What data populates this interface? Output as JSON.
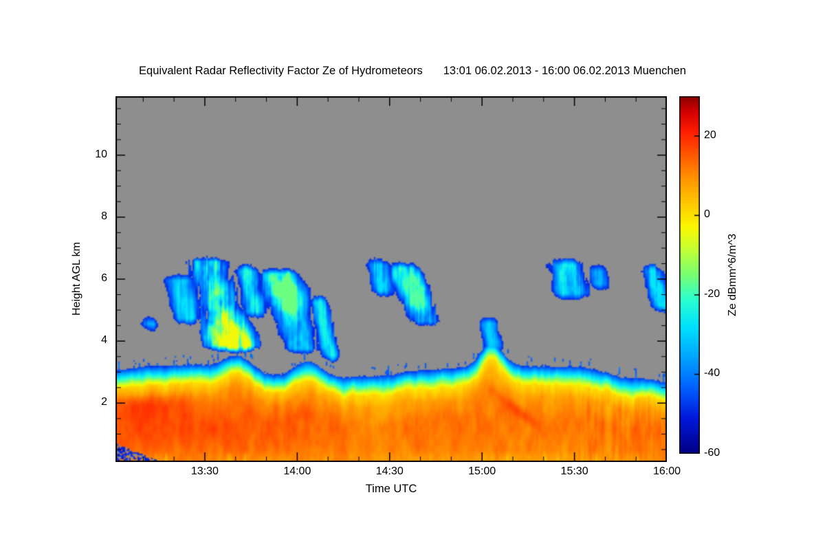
{
  "chart_data": {
    "type": "heatmap",
    "title": "Equivalent Radar Reflectivity Factor Ze of Hydrometeors",
    "period": "13:01 06.02.2013 - 16:00 06.02.2013 Muenchen",
    "xlabel": "Time UTC",
    "ylabel": "Height AGL km",
    "x_axis_range_minutes": [
      0,
      179
    ],
    "x_ticks": [
      {
        "minutes": 29,
        "label": "13:30"
      },
      {
        "minutes": 59,
        "label": "14:00"
      },
      {
        "minutes": 89,
        "label": "14:30"
      },
      {
        "minutes": 119,
        "label": "15:00"
      },
      {
        "minutes": 149,
        "label": "15:30"
      },
      {
        "minutes": 179,
        "label": "16:00"
      }
    ],
    "x_minor_tick_min": 10,
    "y_axis_range_km": [
      0.1,
      11.9
    ],
    "y_ticks": [
      2,
      4,
      6,
      8,
      10
    ],
    "y_minor_tick_km": 0.5,
    "grid": false,
    "nodata_color": "#8e8e8e",
    "colorbar": {
      "label": "Ze dBmm^6/m^3",
      "range": [
        -60,
        30
      ],
      "ticks": [
        20,
        0,
        -20,
        -40,
        -60
      ],
      "stops": [
        {
          "v": -60,
          "c": "#000082"
        },
        {
          "v": -51,
          "c": "#0018dc"
        },
        {
          "v": -43,
          "c": "#0064ff"
        },
        {
          "v": -35,
          "c": "#00aaff"
        },
        {
          "v": -28,
          "c": "#00e1ff"
        },
        {
          "v": -21,
          "c": "#2dffcd"
        },
        {
          "v": -15,
          "c": "#78ff73"
        },
        {
          "v": -9,
          "c": "#beff37"
        },
        {
          "v": -3,
          "c": "#faf800"
        },
        {
          "v": 3,
          "c": "#ffc800"
        },
        {
          "v": 9,
          "c": "#ff9600"
        },
        {
          "v": 15,
          "c": "#ff5a00"
        },
        {
          "v": 21,
          "c": "#ff1e00"
        },
        {
          "v": 26,
          "c": "#d20000"
        },
        {
          "v": 30,
          "c": "#8b0000"
        }
      ]
    },
    "precip_layer": {
      "top_km_base": 3.05,
      "bumps": [
        {
          "m": 40,
          "dh": 0.45,
          "w": 6
        },
        {
          "m": 62,
          "dh": 0.5,
          "w": 6
        },
        {
          "m": 122,
          "dh": 0.85,
          "w": 5
        }
      ],
      "end_lowering_start_min": 150,
      "end_lowering_km": 0.4
    },
    "clouds": [
      {
        "t": 11,
        "w": 4,
        "h0": 4.2,
        "h1": 4.9,
        "peak": -33,
        "slant": 2
      },
      {
        "t": 22,
        "w": 6,
        "h0": 4.4,
        "h1": 6.3,
        "peak": -27,
        "slant": 2
      },
      {
        "t": 34,
        "w": 11,
        "h0": 3.5,
        "h1": 6.9,
        "peak": -4,
        "slant": 3,
        "core_h": 4.0
      },
      {
        "t": 44,
        "w": 5,
        "h0": 4.6,
        "h1": 6.6,
        "peak": -22,
        "slant": 2
      },
      {
        "t": 57,
        "w": 9,
        "h0": 3.4,
        "h1": 6.5,
        "peak": -16,
        "slant": 3,
        "core_h": 5.6
      },
      {
        "t": 68,
        "w": 4,
        "h0": 3.2,
        "h1": 5.6,
        "peak": -24,
        "slant": 2
      },
      {
        "t": 86,
        "w": 5,
        "h0": 5.3,
        "h1": 6.8,
        "peak": -28,
        "slant": 2
      },
      {
        "t": 97,
        "w": 7,
        "h0": 4.3,
        "h1": 6.7,
        "peak": -18,
        "slant": 4,
        "core_h": 5.8
      },
      {
        "t": 122,
        "w": 4,
        "h0": 3.5,
        "h1": 4.9,
        "peak": -30,
        "slant": 2
      },
      {
        "t": 147,
        "w": 8,
        "h0": 5.2,
        "h1": 6.8,
        "peak": -24,
        "slant": 2
      },
      {
        "t": 157,
        "w": 4,
        "h0": 5.5,
        "h1": 6.6,
        "peak": -33,
        "slant": 2
      },
      {
        "t": 176,
        "w": 5,
        "h0": 4.8,
        "h1": 6.6,
        "peak": -27,
        "slant": 3
      }
    ],
    "ground_clutter": {
      "t_end_min": 15,
      "h_top_km": 0.6
    }
  }
}
